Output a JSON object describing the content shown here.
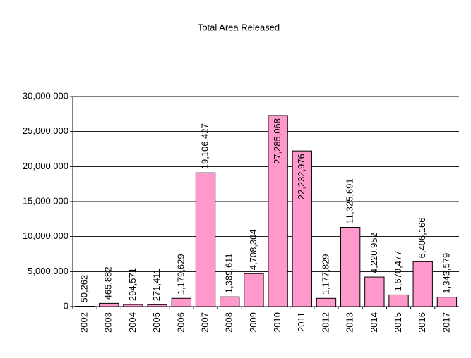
{
  "chart_data": {
    "type": "bar",
    "title": "Total Area Released",
    "categories": [
      "2002",
      "2003",
      "2004",
      "2005",
      "2006",
      "2007",
      "2008",
      "2009",
      "2010",
      "2011",
      "2012",
      "2013",
      "2014",
      "2015",
      "2016",
      "2017"
    ],
    "values": [
      50262,
      465882,
      294571,
      271411,
      1179629,
      19106427,
      1389611,
      4708304,
      27285068,
      22232976,
      1177829,
      11325691,
      4220952,
      1670477,
      6406166,
      1343579
    ],
    "value_labels": [
      "50,262",
      "465,882",
      "294,571",
      "271,411",
      "1,179,629",
      "19,106,427",
      "1,389,611",
      "4,708,304",
      "27,285,068",
      "22,232,976",
      "1,177,829",
      "11,325,691",
      "4,220,952",
      "1,670,477",
      "6,406,166",
      "1,343,579"
    ],
    "color": "#ff99cc",
    "ylim": [
      0,
      30000000
    ],
    "yticks": [
      0,
      {
        "value": 5000000,
        "label": "5,000,000"
      },
      {
        "value": 10000000,
        "label": "10,000,000"
      },
      {
        "value": 15000000,
        "label": "15,000,000"
      },
      {
        "value": 20000000,
        "label": "20,000,000"
      },
      {
        "value": 25000000,
        "label": "25,000,000"
      },
      {
        "value": 30000000,
        "label": "30,000,000"
      }
    ],
    "grid": true
  }
}
